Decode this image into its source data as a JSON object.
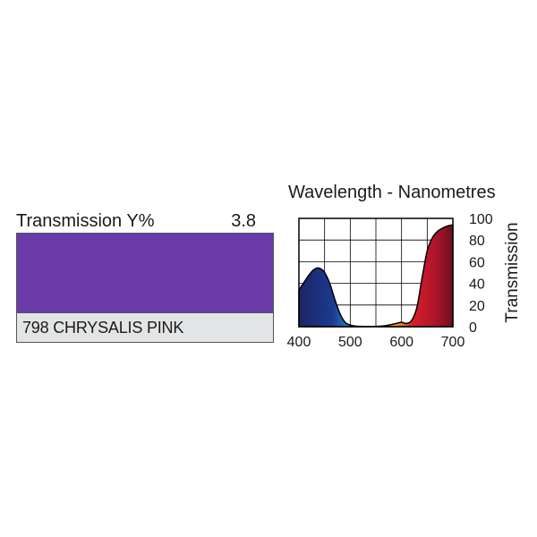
{
  "filter": {
    "transmission_label": "Transmission Y%",
    "transmission_value": "3.8",
    "name": "798 CHRYSALIS PINK",
    "swatch_color": "#6a3aa9"
  },
  "chart_data": {
    "type": "area",
    "title": "Wavelength - Nanometres",
    "xlabel": "",
    "ylabel": "Transmission",
    "xlim": [
      400,
      700
    ],
    "ylim": [
      0,
      100
    ],
    "x_ticks": [
      400,
      500,
      600,
      700
    ],
    "y_ticks": [
      0,
      20,
      40,
      60,
      80,
      100
    ],
    "grid": true,
    "series": [
      {
        "x": [
          400,
          410,
          420,
          430,
          440,
          450,
          460,
          470,
          480,
          490,
          500,
          510,
          520,
          530,
          540,
          550,
          560,
          570,
          580,
          590,
          600,
          610,
          620,
          630,
          640,
          650,
          660,
          670,
          680,
          690,
          700
        ],
        "y": [
          34,
          41,
          48,
          53,
          54,
          50,
          40,
          25,
          12,
          4,
          1.5,
          0.5,
          0.3,
          0.2,
          0.2,
          0.3,
          0.5,
          1,
          2,
          3,
          4,
          3,
          6,
          18,
          45,
          70,
          82,
          88,
          91,
          93,
          94
        ]
      }
    ]
  }
}
